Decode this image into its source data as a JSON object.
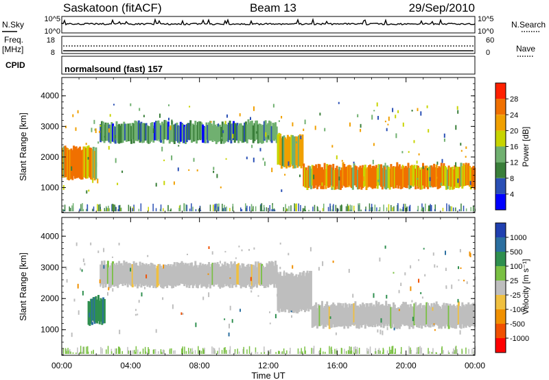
{
  "header": {
    "station": "Saskatoon (fitACF)",
    "beam": "Beam 13",
    "date": "29/Sep/2010"
  },
  "noise_panel": {
    "left_label": "N.Sky",
    "left_top_tick": "10^5",
    "left_bottom_tick": "10^0",
    "right_top_tick": "10^5",
    "right_bottom_tick": "10^0",
    "right_label": "N.Search"
  },
  "freq_panel": {
    "left_label_line1": "Freq.",
    "left_label_line2": "[MHz]",
    "left_top_tick": "18",
    "left_bottom_tick": "8",
    "right_top_tick": "60",
    "right_bottom_tick": "0",
    "right_label": "Nave"
  },
  "cpid": {
    "label": "CPID",
    "program": "normalsound (fast) 157"
  },
  "chart_data": [
    {
      "type": "heatmap",
      "parameter": "power",
      "ylabel": "Slant Range [km]",
      "ylim": [
        180,
        4600
      ],
      "yticks": [
        "1000",
        "2000",
        "3000",
        "4000"
      ],
      "xlim_hours": [
        0,
        24
      ],
      "colorbar_label": "Power [dB]",
      "colorbar_ticks": [
        "4",
        "8",
        "12",
        "16",
        "20",
        "24",
        "28"
      ],
      "colorbar_colors": [
        "#0000ff",
        "#2a4fb5",
        "#3a7f3a",
        "#70b070",
        "#c8d400",
        "#f0a000",
        "#f07000",
        "#ff2000"
      ],
      "echo_bands": [
        {
          "start_hr": 0.0,
          "end_hr": 2.0,
          "range_lo_km": 1300,
          "range_hi_km": 2300,
          "power_db": 28
        },
        {
          "start_hr": 2.2,
          "end_hr": 12.5,
          "range_lo_km": 2500,
          "range_hi_km": 3100,
          "power_db": 16
        },
        {
          "start_hr": 12.5,
          "end_hr": 14.0,
          "range_lo_km": 1700,
          "range_hi_km": 2700,
          "power_db": 24
        },
        {
          "start_hr": 14.0,
          "end_hr": 24.0,
          "range_lo_km": 1000,
          "range_hi_km": 1700,
          "power_db": 28
        }
      ]
    },
    {
      "type": "heatmap",
      "parameter": "velocity",
      "ylabel": "Slant Range [km]",
      "ylim": [
        180,
        4600
      ],
      "yticks": [
        "1000",
        "2000",
        "3000",
        "4000"
      ],
      "xlim_hours": [
        0,
        24
      ],
      "xticks": [
        "00:00",
        "04:00",
        "08:00",
        "12:00",
        "16:00",
        "20:00",
        "00:00"
      ],
      "xlabel": "Time UT",
      "colorbar_label": "Velocity [m s⁻¹]",
      "colorbar_ticks": [
        "1000",
        "500",
        "100",
        "25",
        "-25",
        "-100",
        "-500",
        "-1000"
      ],
      "colorbar_colors": [
        "#2040b0",
        "#2b6fa0",
        "#2f8f4f",
        "#7ac043",
        "#bebebe",
        "#f0c040",
        "#f09000",
        "#f05000",
        "#ff0000"
      ],
      "echo_bands": [
        {
          "start_hr": 2.2,
          "end_hr": 12.5,
          "range_lo_km": 2400,
          "range_hi_km": 3100,
          "velocity_ms": 0
        },
        {
          "start_hr": 12.5,
          "end_hr": 14.5,
          "range_lo_km": 1600,
          "range_hi_km": 2800,
          "velocity_ms": 0
        },
        {
          "start_hr": 14.5,
          "end_hr": 24.0,
          "range_lo_km": 1100,
          "range_hi_km": 1800,
          "velocity_ms": 0
        },
        {
          "start_hr": 1.5,
          "end_hr": 2.5,
          "range_lo_km": 1200,
          "range_hi_km": 2000,
          "velocity_ms": 800
        }
      ]
    }
  ]
}
